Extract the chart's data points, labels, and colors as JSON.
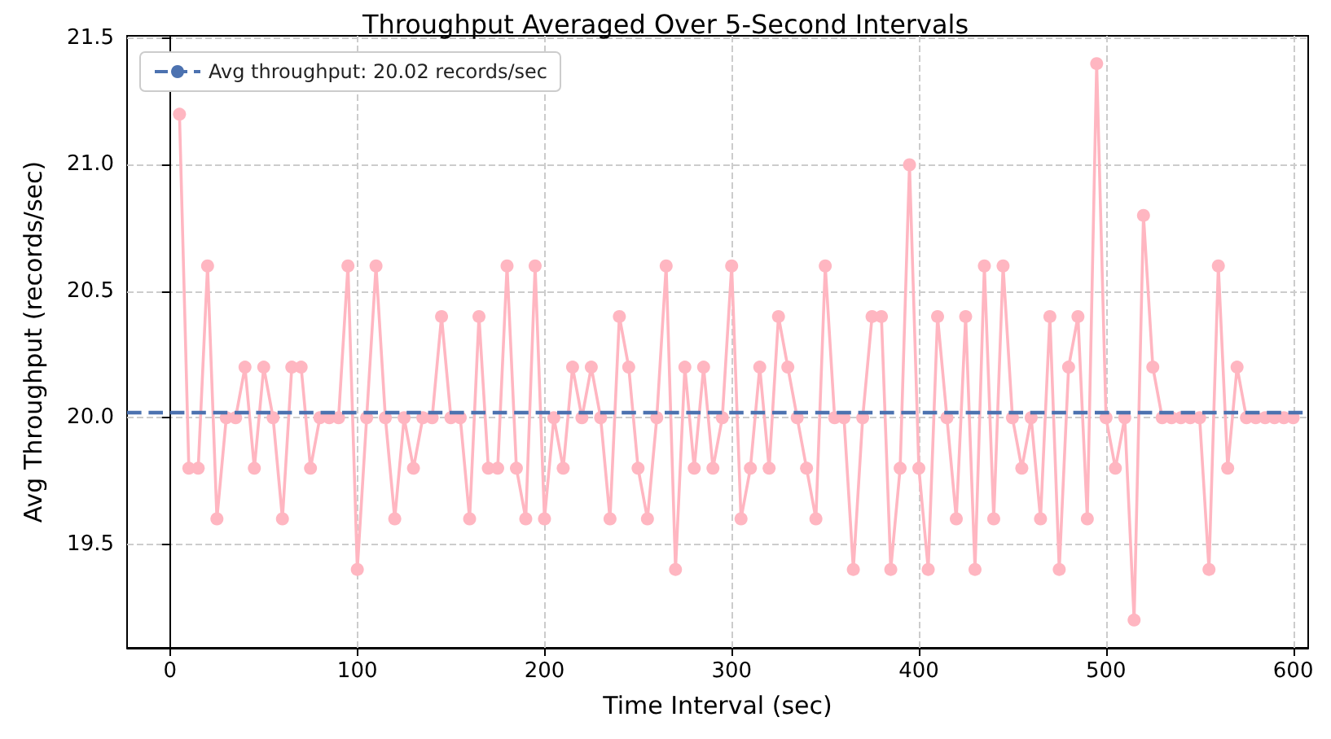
{
  "chart_data": {
    "type": "line",
    "title": "Throughput Averaged Over 5-Second Intervals",
    "xlabel": "Time Interval (sec)",
    "ylabel": "Avg Throughput (records/sec)",
    "x": [
      5,
      10,
      15,
      20,
      25,
      30,
      35,
      40,
      45,
      50,
      55,
      60,
      65,
      70,
      75,
      80,
      85,
      90,
      95,
      100,
      105,
      110,
      115,
      120,
      125,
      130,
      135,
      140,
      145,
      150,
      155,
      160,
      165,
      170,
      175,
      180,
      185,
      190,
      195,
      200,
      205,
      210,
      215,
      220,
      225,
      230,
      235,
      240,
      245,
      250,
      255,
      260,
      265,
      270,
      275,
      280,
      285,
      290,
      295,
      300,
      305,
      310,
      315,
      320,
      325,
      330,
      335,
      340,
      345,
      350,
      355,
      360,
      365,
      370,
      375,
      380,
      385,
      390,
      395,
      400,
      405,
      410,
      415,
      420,
      425,
      430,
      435,
      440,
      445,
      450,
      455,
      460,
      465,
      470,
      475,
      480,
      485,
      490,
      495,
      500,
      505,
      510,
      515,
      520,
      525,
      530,
      535,
      540,
      545,
      550,
      555,
      560,
      565,
      570,
      575,
      580,
      585,
      590,
      595,
      600
    ],
    "series": [
      {
        "color": "#ffb6c1",
        "values": [
          21.2,
          19.8,
          19.8,
          20.6,
          19.6,
          20.0,
          20.0,
          20.2,
          19.8,
          20.2,
          20.0,
          19.6,
          20.2,
          20.2,
          19.8,
          20.0,
          20.0,
          20.0,
          20.6,
          19.4,
          20.0,
          20.6,
          20.0,
          19.6,
          20.0,
          19.8,
          20.0,
          20.0,
          20.4,
          20.0,
          20.0,
          19.6,
          20.4,
          19.8,
          19.8,
          20.6,
          19.8,
          19.6,
          20.6,
          19.6,
          20.0,
          19.8,
          20.2,
          20.0,
          20.2,
          20.0,
          19.6,
          20.4,
          20.2,
          19.8,
          19.6,
          20.0,
          20.6,
          19.4,
          20.2,
          19.8,
          20.2,
          19.8,
          20.0,
          20.6,
          19.6,
          19.8,
          20.2,
          19.8,
          20.4,
          20.2,
          20.0,
          19.8,
          19.6,
          20.6,
          20.0,
          20.0,
          19.4,
          20.0,
          20.4,
          20.4,
          19.4,
          19.8,
          21.0,
          19.8,
          19.4,
          20.4,
          20.0,
          19.6,
          20.4,
          19.4,
          20.6,
          19.6,
          20.6,
          20.0,
          19.8,
          20.0,
          19.6,
          20.4,
          19.4,
          20.2,
          20.4,
          19.6,
          21.4,
          20.0,
          19.8,
          20.0,
          19.2,
          20.8,
          20.2,
          20.0,
          20.0,
          20.0,
          20.0,
          20.0,
          19.4,
          20.6,
          19.8,
          20.2,
          20.0,
          20.0,
          20.0,
          20.0,
          20.0,
          20.0
        ]
      }
    ],
    "ref_lines": [
      {
        "axis": "y",
        "value": 20.02,
        "label": "Avg throughput: 20.02 records/sec",
        "color": "#4c72b0",
        "line_style": "dashed"
      }
    ],
    "xlim": [
      -23,
      608
    ],
    "ylim": [
      19.09,
      21.51
    ],
    "xticks": [
      0,
      100,
      200,
      300,
      400,
      500,
      600
    ],
    "yticks": [
      19.5,
      {
        "value": 20,
        "label": "20.0"
      },
      20.5,
      {
        "value": 21,
        "label": "21.0"
      },
      21.5
    ],
    "grid": true,
    "legend": "top left",
    "marker": "circle",
    "line_style": "solid"
  }
}
